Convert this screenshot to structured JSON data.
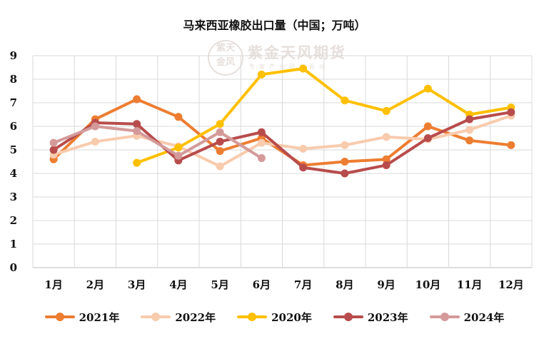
{
  "chart_data": {
    "type": "line",
    "title": "马来西亚橡胶出口量（中国；万吨）",
    "categories": [
      "1月",
      "2月",
      "3月",
      "4月",
      "5月",
      "6月",
      "7月",
      "8月",
      "9月",
      "10月",
      "11月",
      "12月"
    ],
    "ylim": [
      0,
      9
    ],
    "yticks": [
      0,
      1,
      2,
      3,
      4,
      5,
      6,
      7,
      8,
      9
    ],
    "grid": true,
    "legend_position": "bottom",
    "series": [
      {
        "name": "2021年",
        "color": "#ED7D31",
        "values": [
          4.6,
          6.3,
          7.15,
          6.4,
          4.95,
          5.5,
          4.35,
          4.5,
          4.6,
          6.0,
          5.4,
          5.2
        ]
      },
      {
        "name": "2022年",
        "color": "#F8CBAD",
        "values": [
          4.8,
          5.35,
          5.6,
          5.15,
          4.3,
          5.3,
          5.05,
          5.2,
          5.55,
          5.45,
          5.85,
          6.45
        ]
      },
      {
        "name": "2020年",
        "color": "#FFC000",
        "values": [
          null,
          null,
          4.45,
          5.1,
          6.1,
          8.2,
          8.45,
          7.1,
          6.65,
          7.6,
          6.5,
          6.8
        ]
      },
      {
        "name": "2023年",
        "color": "#B84C4C",
        "values": [
          5.0,
          6.15,
          6.1,
          4.55,
          5.35,
          5.75,
          4.25,
          4.0,
          4.35,
          5.5,
          6.3,
          6.6
        ]
      },
      {
        "name": "2024年",
        "color": "#D49A9A",
        "values": [
          5.3,
          6.0,
          5.8,
          4.75,
          5.75,
          4.65,
          null,
          null,
          null,
          null,
          null,
          null
        ]
      }
    ]
  },
  "watermark": {
    "seal_text_line1": "紫天",
    "seal_text_line2": "金风",
    "name": "紫金天风期货",
    "subtitle": "专家产业研究驱动"
  }
}
